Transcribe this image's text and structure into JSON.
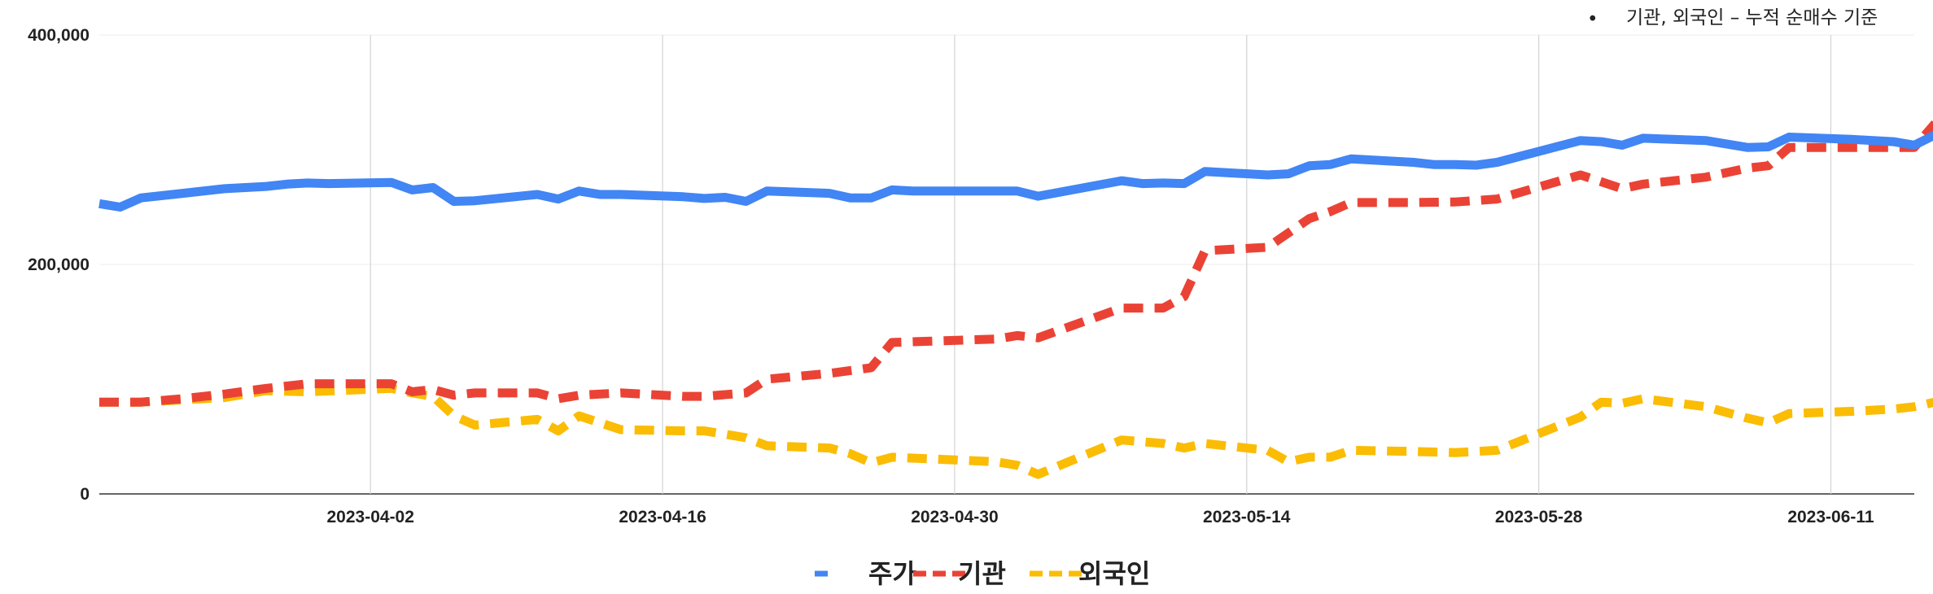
{
  "annotation": {
    "bullet": "•",
    "text": "기관, 외국인 – 누적 순매수 기준"
  },
  "chart_data": {
    "type": "line",
    "title": "",
    "xlabel": "",
    "ylabel": "",
    "x_range": [
      "2023-03-20",
      "2023-06-15"
    ],
    "ylim": [
      0,
      400000
    ],
    "y_ticks": [
      {
        "value": 0,
        "label": "0"
      },
      {
        "value": 200000,
        "label": "200,000"
      },
      {
        "value": 400000,
        "label": "400,000"
      }
    ],
    "x_ticks": [
      "2023-04-02",
      "2023-04-16",
      "2023-04-30",
      "2023-05-14",
      "2023-05-28",
      "2023-06-11"
    ],
    "grid": "vertical-major",
    "legend_position": "bottom",
    "series": [
      {
        "name": "주가",
        "color": "#4285F4",
        "dash": "solid",
        "points": [
          [
            "2023-03-20",
            253000
          ],
          [
            "2023-03-21",
            250000
          ],
          [
            "2023-03-22",
            258000
          ],
          [
            "2023-03-24",
            262000
          ],
          [
            "2023-03-26",
            266000
          ],
          [
            "2023-03-28",
            268000
          ],
          [
            "2023-03-29",
            270000
          ],
          [
            "2023-03-30",
            271000
          ],
          [
            "2023-03-31",
            270500
          ],
          [
            "2023-04-03",
            271500
          ],
          [
            "2023-04-04",
            265000
          ],
          [
            "2023-04-05",
            267000
          ],
          [
            "2023-04-06",
            255000
          ],
          [
            "2023-04-07",
            255500
          ],
          [
            "2023-04-10",
            261000
          ],
          [
            "2023-04-11",
            257000
          ],
          [
            "2023-04-12",
            264000
          ],
          [
            "2023-04-13",
            261000
          ],
          [
            "2023-04-14",
            261000
          ],
          [
            "2023-04-17",
            259000
          ],
          [
            "2023-04-18",
            257500
          ],
          [
            "2023-04-19",
            258500
          ],
          [
            "2023-04-20",
            255000
          ],
          [
            "2023-04-21",
            264000
          ],
          [
            "2023-04-24",
            262000
          ],
          [
            "2023-04-25",
            258000
          ],
          [
            "2023-04-26",
            258000
          ],
          [
            "2023-04-27",
            265000
          ],
          [
            "2023-04-28",
            264000
          ],
          [
            "2023-05-02",
            264000
          ],
          [
            "2023-05-03",
            264000
          ],
          [
            "2023-05-04",
            259500
          ],
          [
            "2023-05-08",
            273000
          ],
          [
            "2023-05-09",
            270500
          ],
          [
            "2023-05-10",
            271000
          ],
          [
            "2023-05-11",
            270500
          ],
          [
            "2023-05-12",
            281000
          ],
          [
            "2023-05-15",
            278000
          ],
          [
            "2023-05-16",
            279000
          ],
          [
            "2023-05-17",
            286000
          ],
          [
            "2023-05-18",
            287000
          ],
          [
            "2023-05-19",
            292000
          ],
          [
            "2023-05-22",
            289000
          ],
          [
            "2023-05-23",
            287000
          ],
          [
            "2023-05-24",
            287000
          ],
          [
            "2023-05-25",
            286500
          ],
          [
            "2023-05-26",
            289000
          ],
          [
            "2023-05-30",
            308000
          ],
          [
            "2023-05-31",
            307000
          ],
          [
            "2023-06-01",
            304000
          ],
          [
            "2023-06-02",
            310000
          ],
          [
            "2023-06-05",
            308000
          ],
          [
            "2023-06-07",
            302000
          ],
          [
            "2023-06-08",
            302500
          ],
          [
            "2023-06-09",
            311000
          ],
          [
            "2023-06-12",
            309000
          ],
          [
            "2023-06-14",
            307000
          ],
          [
            "2023-06-15",
            304000
          ],
          [
            "2023-06-16",
            313000
          ]
        ]
      },
      {
        "name": "기관",
        "color": "#EA4335",
        "dash": "dashed",
        "points": [
          [
            "2023-03-20",
            80000
          ],
          [
            "2023-03-22",
            80000
          ],
          [
            "2023-03-24",
            83000
          ],
          [
            "2023-03-26",
            87000
          ],
          [
            "2023-03-28",
            92000
          ],
          [
            "2023-03-30",
            96000
          ],
          [
            "2023-04-03",
            96000
          ],
          [
            "2023-04-04",
            89000
          ],
          [
            "2023-04-05",
            91000
          ],
          [
            "2023-04-06",
            86000
          ],
          [
            "2023-04-07",
            88000
          ],
          [
            "2023-04-10",
            88000
          ],
          [
            "2023-04-11",
            83000
          ],
          [
            "2023-04-12",
            86000
          ],
          [
            "2023-04-14",
            88000
          ],
          [
            "2023-04-17",
            85000
          ],
          [
            "2023-04-18",
            85000
          ],
          [
            "2023-04-20",
            88000
          ],
          [
            "2023-04-21",
            100000
          ],
          [
            "2023-04-24",
            105000
          ],
          [
            "2023-04-26",
            110000
          ],
          [
            "2023-04-27",
            132000
          ],
          [
            "2023-05-02",
            135000
          ],
          [
            "2023-05-03",
            138000
          ],
          [
            "2023-05-04",
            136000
          ],
          [
            "2023-05-08",
            162000
          ],
          [
            "2023-05-09",
            162000
          ],
          [
            "2023-05-10",
            162000
          ],
          [
            "2023-05-11",
            172000
          ],
          [
            "2023-05-12",
            212000
          ],
          [
            "2023-05-15",
            215000
          ],
          [
            "2023-05-17",
            240000
          ],
          [
            "2023-05-18",
            246000
          ],
          [
            "2023-05-19",
            254000
          ],
          [
            "2023-05-22",
            254000
          ],
          [
            "2023-05-24",
            254500
          ],
          [
            "2023-05-26",
            257000
          ],
          [
            "2023-05-30",
            278000
          ],
          [
            "2023-06-01",
            266000
          ],
          [
            "2023-06-02",
            270000
          ],
          [
            "2023-06-05",
            276000
          ],
          [
            "2023-06-07",
            284000
          ],
          [
            "2023-06-08",
            286000
          ],
          [
            "2023-06-09",
            302000
          ],
          [
            "2023-06-15",
            302000
          ],
          [
            "2023-06-16",
            323000
          ]
        ]
      },
      {
        "name": "외국인",
        "color": "#FBBC04",
        "dash": "dashed",
        "points": [
          [
            "2023-03-20",
            80000
          ],
          [
            "2023-03-22",
            80000
          ],
          [
            "2023-03-24",
            82000
          ],
          [
            "2023-03-26",
            84000
          ],
          [
            "2023-03-28",
            90000
          ],
          [
            "2023-03-30",
            89000
          ],
          [
            "2023-04-03",
            92000
          ],
          [
            "2023-04-04",
            88000
          ],
          [
            "2023-04-05",
            85000
          ],
          [
            "2023-04-06",
            68000
          ],
          [
            "2023-04-07",
            60000
          ],
          [
            "2023-04-10",
            65000
          ],
          [
            "2023-04-11",
            55000
          ],
          [
            "2023-04-12",
            68000
          ],
          [
            "2023-04-14",
            56000
          ],
          [
            "2023-04-17",
            55000
          ],
          [
            "2023-04-18",
            55000
          ],
          [
            "2023-04-20",
            49000
          ],
          [
            "2023-04-21",
            42000
          ],
          [
            "2023-04-24",
            40000
          ],
          [
            "2023-04-25",
            35000
          ],
          [
            "2023-04-26",
            27000
          ],
          [
            "2023-04-27",
            32000
          ],
          [
            "2023-05-02",
            28000
          ],
          [
            "2023-05-03",
            25000
          ],
          [
            "2023-05-04",
            17000
          ],
          [
            "2023-05-08",
            47000
          ],
          [
            "2023-05-10",
            44000
          ],
          [
            "2023-05-11",
            40000
          ],
          [
            "2023-05-12",
            44000
          ],
          [
            "2023-05-15",
            38000
          ],
          [
            "2023-05-16",
            28000
          ],
          [
            "2023-05-17",
            32000
          ],
          [
            "2023-05-18",
            32000
          ],
          [
            "2023-05-19",
            38000
          ],
          [
            "2023-05-22",
            37000
          ],
          [
            "2023-05-24",
            36000
          ],
          [
            "2023-05-26",
            38000
          ],
          [
            "2023-05-30",
            67000
          ],
          [
            "2023-05-31",
            80000
          ],
          [
            "2023-06-01",
            79000
          ],
          [
            "2023-06-02",
            83000
          ],
          [
            "2023-06-05",
            76000
          ],
          [
            "2023-06-07",
            66000
          ],
          [
            "2023-06-08",
            62000
          ],
          [
            "2023-06-09",
            70000
          ],
          [
            "2023-06-12",
            72000
          ],
          [
            "2023-06-14",
            74000
          ],
          [
            "2023-06-15",
            76000
          ],
          [
            "2023-06-16",
            80000
          ]
        ]
      }
    ]
  }
}
